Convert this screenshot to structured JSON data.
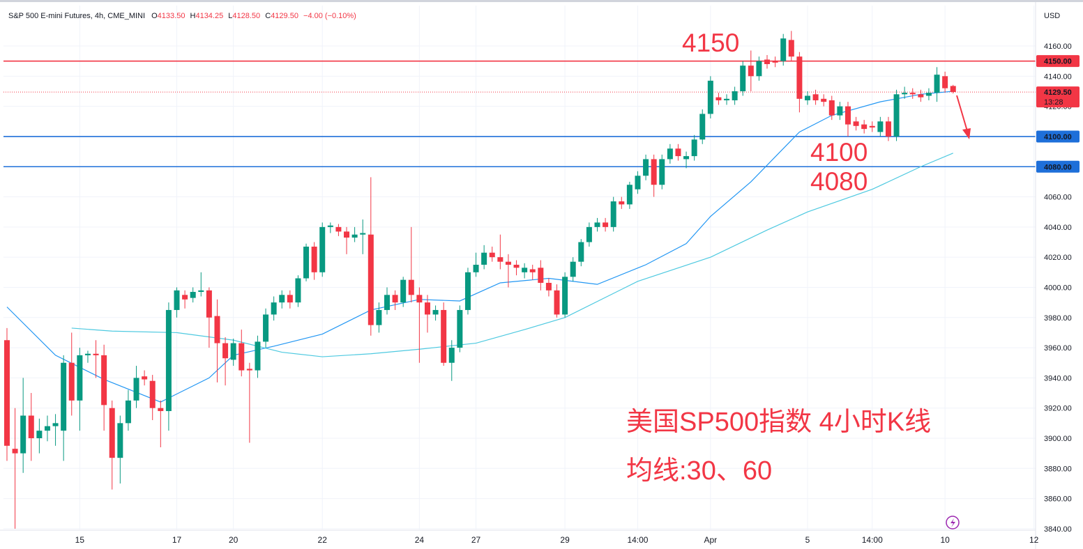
{
  "chart_data": {
    "type": "candlestick",
    "header": {
      "symbol": "S&P 500 E-mini Futures, 4h, CME_MINI",
      "ohlc": [
        {
          "label": "O",
          "value": "4133.50"
        },
        {
          "label": "H",
          "value": "4134.25"
        },
        {
          "label": "L",
          "value": "4128.50"
        },
        {
          "label": "C",
          "value": "4129.50"
        }
      ],
      "change": "−4.00 (−0.10%)"
    },
    "currency": "USD",
    "up_color": "#089981",
    "down_color": "#f23645",
    "open": [
      3965,
      3893,
      3890,
      3915,
      3900,
      3905,
      3908,
      3905,
      3950,
      3925,
      3955,
      3956,
      3955,
      3920,
      3887,
      3910,
      3925,
      3941,
      3938,
      3920,
      3918,
      3985,
      3995,
      3993,
      3997,
      3998,
      3981,
      3963,
      3952,
      3963,
      3946,
      3945,
      3964,
      3982,
      3990,
      3995,
      3990,
      4006,
      4027,
      4010,
      4040,
      4040,
      4037,
      4033,
      4035,
      4035,
      3975,
      3985,
      3995,
      3990,
      4005,
      3995,
      3990,
      3982,
      3985,
      3950,
      3960,
      3985,
      4010,
      4015,
      4023,
      4020,
      4017,
      4015,
      4010,
      4012,
      4013,
      4003,
      3998,
      3982,
      4007,
      4017,
      4030,
      4040,
      4043,
      4040,
      4057,
      4055,
      4065,
      4074,
      4085,
      4068,
      4085,
      4092,
      4085,
      4087,
      4098,
      4115,
      4126,
      4124,
      4124,
      4130,
      4147,
      4140,
      4151,
      4150,
      4150,
      4164,
      4153,
      4124,
      4128,
      4125,
      4124,
      4114,
      4120,
      4110,
      4108,
      4107,
      4103,
      4110,
      4100,
      4128,
      4129,
      4128,
      4127,
      4129,
      4140,
      4133.5
    ],
    "high": [
      3973,
      3920,
      3940,
      3930,
      3913,
      3915,
      3916,
      3955,
      3970,
      3960,
      3958,
      3965,
      3962,
      3925,
      3915,
      3932,
      3948,
      3945,
      3942,
      3925,
      3990,
      4000,
      3998,
      4000,
      4010,
      4000,
      3992,
      3967,
      3966,
      3972,
      3950,
      3968,
      3986,
      3994,
      3998,
      3998,
      4008,
      4029,
      4030,
      4043,
      4043,
      4042,
      4040,
      4040,
      4045,
      4073,
      3990,
      4000,
      3998,
      4007,
      4040,
      4000,
      3995,
      3988,
      3990,
      3965,
      3988,
      4013,
      4023,
      4028,
      4027,
      4035,
      4022,
      4018,
      4016,
      4015,
      4018,
      4006,
      4002,
      4010,
      4020,
      4032,
      4043,
      4046,
      4046,
      4060,
      4060,
      4070,
      4077,
      4088,
      4088,
      4088,
      4095,
      4095,
      4090,
      4101,
      4118,
      4140,
      4129,
      4128,
      4133,
      4150,
      4157,
      4153,
      4154,
      4153,
      4168,
      4170,
      4156,
      4130,
      4131,
      4128,
      4127,
      4123,
      4123,
      4113,
      4111,
      4110,
      4113,
      4113,
      4131,
      4133,
      4132,
      4131,
      4132,
      4146,
      4143,
      4134.25
    ],
    "low": [
      3885,
      3840,
      3877,
      3885,
      3890,
      3898,
      3895,
      3885,
      3915,
      3905,
      3950,
      3940,
      3905,
      3866,
      3870,
      3905,
      3920,
      3935,
      3912,
      3894,
      3905,
      3980,
      3986,
      3990,
      3994,
      3960,
      3937,
      3935,
      3948,
      3941,
      3897,
      3940,
      3960,
      3978,
      3986,
      3986,
      3987,
      4004,
      4005,
      4007,
      4036,
      4034,
      4022,
      4030,
      4022,
      3968,
      3970,
      3982,
      3985,
      3987,
      3990,
      3950,
      3970,
      3978,
      3948,
      3938,
      3957,
      3982,
      4007,
      4012,
      4017,
      4012,
      4000,
      4008,
      4006,
      4005,
      3998,
      3994,
      3980,
      3980,
      4004,
      4014,
      4027,
      4037,
      4037,
      4037,
      4052,
      4052,
      4062,
      4071,
      4060,
      4065,
      4082,
      4084,
      4079,
      4084,
      4095,
      4112,
      4121,
      4121,
      4121,
      4127,
      4130,
      4137,
      4145,
      4146,
      4147,
      4150,
      4116,
      4121,
      4121,
      4120,
      4111,
      4111,
      4100,
      4104,
      4102,
      4103,
      4100,
      4097,
      4097,
      4125,
      4125,
      4123,
      4124,
      4123,
      4129,
      4128.5
    ],
    "close": [
      3895,
      3890,
      3915,
      3900,
      3905,
      3908,
      3910,
      3950,
      3925,
      3955,
      3956,
      3955,
      3922,
      3887,
      3910,
      3925,
      3940,
      3939,
      3920,
      3918,
      3985,
      3998,
      3992,
      3997,
      3998,
      3980,
      3963,
      3953,
      3963,
      3945,
      3945,
      3964,
      3982,
      3990,
      3995,
      3990,
      4006,
      4027,
      4010,
      4040,
      4041,
      4037,
      4033,
      4035,
      4036,
      3975,
      3985,
      3995,
      3990,
      4005,
      3995,
      3990,
      3982,
      3985,
      3950,
      3960,
      3985,
      4010,
      4015,
      4023,
      4020,
      4017,
      4015,
      4013,
      4013,
      4010,
      4003,
      3998,
      3982,
      4007,
      4017,
      4030,
      4040,
      4043,
      4040,
      4057,
      4055,
      4068,
      4074,
      4085,
      4068,
      4085,
      4092,
      4087,
      4087,
      4098,
      4115,
      4137,
      4124,
      4125,
      4130,
      4147,
      4140,
      4150,
      4148,
      4149,
      4165,
      4153,
      4125,
      4127,
      4124,
      4123,
      4114,
      4120,
      4108,
      4107,
      4105,
      4106,
      4110,
      4100,
      4128,
      4129,
      4128,
      4126,
      4129,
      4141,
      4132,
      4129.5
    ],
    "moving_averages": [
      {
        "color": "#2196f3",
        "x": [
          0,
          6,
          12,
          19,
          25,
          28,
          33,
          39,
          45,
          51,
          56,
          61,
          67,
          73,
          79,
          84,
          87,
          92,
          98,
          102,
          108,
          113,
          117
        ],
        "values": [
          3987,
          3955,
          3939,
          3924,
          3940,
          3955,
          3961,
          3969,
          3985,
          3992,
          3991,
          4003,
          4006,
          4002,
          4015,
          4029,
          4047,
          4070,
          4103,
          4114,
          4123,
          4128,
          4130
        ]
      },
      {
        "color": "#4dc9e0",
        "x": [
          8,
          13,
          21,
          28,
          34,
          39,
          45,
          51,
          58,
          64,
          69,
          78,
          87,
          94,
          99,
          107,
          113,
          117
        ],
        "values": [
          3973,
          3971,
          3970,
          3965,
          3957,
          3954,
          3956,
          3959,
          3963,
          3972,
          3980,
          4004,
          4020,
          4038,
          4050,
          4065,
          4080,
          4089
        ]
      }
    ],
    "levels": [
      {
        "value": 4150,
        "label": "4150.00",
        "color": "#f23645"
      },
      {
        "value": 4100,
        "label": "4100.00",
        "color": "#1e6fd9"
      },
      {
        "value": 4080,
        "label": "4080.00",
        "color": "#1e6fd9"
      }
    ],
    "last": {
      "value": 4129.5,
      "label": "4129.50",
      "countdown": "13:28",
      "color": "#f23645"
    },
    "annotations": [
      "4150",
      "4100",
      "4080",
      "美国SP500指数 4小时K线",
      "均线:30、60"
    ],
    "xlim": [
      -0.43,
      127.2
    ],
    "xticks": [
      {
        "value": 9,
        "label": "15"
      },
      {
        "value": 21,
        "label": "17"
      },
      {
        "value": 28,
        "label": "20"
      },
      {
        "value": 39,
        "label": "22"
      },
      {
        "value": 51,
        "label": "24"
      },
      {
        "value": 58,
        "label": "27"
      },
      {
        "value": 69,
        "label": "29"
      },
      {
        "value": 78,
        "label": "14:00"
      },
      {
        "value": 87,
        "label": "Apr"
      },
      {
        "value": 99,
        "label": "5"
      },
      {
        "value": 107,
        "label": "14:00"
      },
      {
        "value": 116,
        "label": "10"
      },
      {
        "value": 127,
        "label": "12"
      }
    ],
    "ylim": [
      3839.5,
      4186.8
    ],
    "yticks": [
      {
        "value": 3840,
        "label": "3840.00"
      },
      {
        "value": 3860,
        "label": "3860.00"
      },
      {
        "value": 3880,
        "label": "3880.00"
      },
      {
        "value": 3900,
        "label": "3900.00"
      },
      {
        "value": 3920,
        "label": "3920.00"
      },
      {
        "value": 3940,
        "label": "3940.00"
      },
      {
        "value": 3960,
        "label": "3960.00"
      },
      {
        "value": 3980,
        "label": "3980.00"
      },
      {
        "value": 4000,
        "label": "4000.00"
      },
      {
        "value": 4020,
        "label": "4020.00"
      },
      {
        "value": 4040,
        "label": "4040.00"
      },
      {
        "value": 4060,
        "label": "4060.00"
      },
      {
        "value": 4080,
        "label": "4080.00"
      },
      {
        "value": 4100,
        "label": "4100.00"
      },
      {
        "value": 4120,
        "label": "4120.00"
      },
      {
        "value": 4140,
        "label": "4140.00"
      },
      {
        "value": 4160,
        "label": "4160.00"
      }
    ],
    "grid": true
  }
}
